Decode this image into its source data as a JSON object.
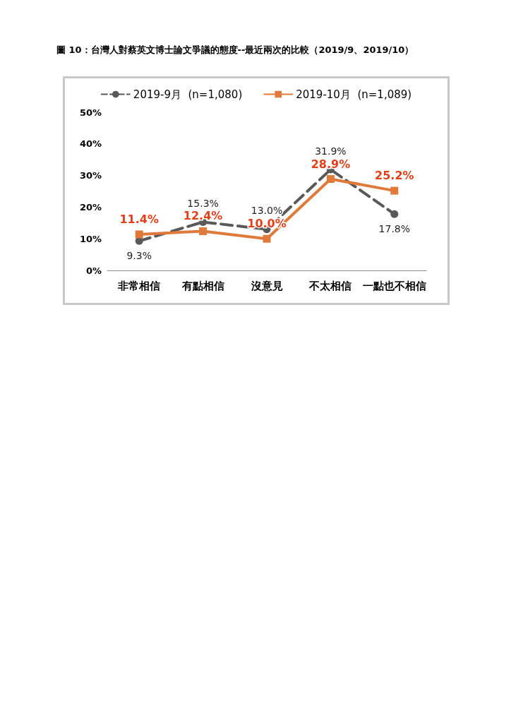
{
  "chart_data": {
    "type": "line",
    "title": "圖 10：台灣人對蔡英文博士論文爭議的態度--最近兩次的比較（2019/9、2019/10）",
    "categories": [
      "非常相信",
      "有點相信",
      "沒意見",
      "不太相信",
      "一點也不相信"
    ],
    "series": [
      {
        "name": "2019-9月  (n=1,080)",
        "color": "#595959",
        "line_style": "dashed",
        "marker": "circle",
        "values": [
          9.3,
          15.3,
          13.0,
          31.9,
          17.8
        ],
        "value_labels": [
          "9.3%",
          "15.3%",
          "13.0%",
          "31.9%",
          "17.8%"
        ]
      },
      {
        "name": "2019-10月  (n=1,089)",
        "color": "#e07a3a",
        "line_style": "solid",
        "marker": "square",
        "values": [
          11.4,
          12.4,
          10.0,
          28.9,
          25.2
        ],
        "value_labels": [
          "11.4%",
          "12.4%",
          "10.0%",
          "28.9%",
          "25.2%"
        ]
      }
    ],
    "ylim": [
      0,
      50
    ],
    "yticks": [
      {
        "value": 0,
        "label": "0%"
      },
      {
        "value": 10,
        "label": "10%"
      },
      {
        "value": 20,
        "label": "20%"
      },
      {
        "value": 30,
        "label": "30%"
      },
      {
        "value": 40,
        "label": "40%"
      },
      {
        "value": 50,
        "label": "50%"
      }
    ],
    "grid": false,
    "legend": "top"
  }
}
